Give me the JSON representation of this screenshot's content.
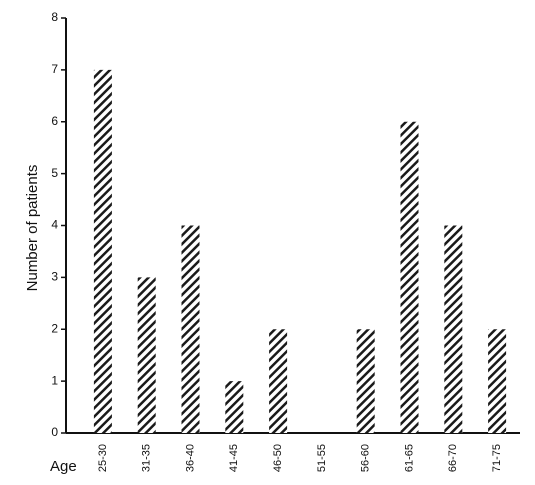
{
  "chart_data": {
    "type": "bar",
    "x_label": "Age",
    "y_label": "Number of patients",
    "categories": [
      "25-30",
      "31-35",
      "36-40",
      "41-45",
      "46-50",
      "51-55",
      "56-60",
      "61-65",
      "66-70",
      "71-75"
    ],
    "values": [
      7,
      3,
      4,
      1,
      2,
      0,
      2,
      6,
      4,
      2
    ],
    "color": "#1a1a1a",
    "pattern": "hatch",
    "ylim": [
      0,
      8
    ],
    "yticks": [
      0,
      1,
      2,
      3,
      4,
      5,
      6,
      7,
      8
    ],
    "grid": false
  }
}
